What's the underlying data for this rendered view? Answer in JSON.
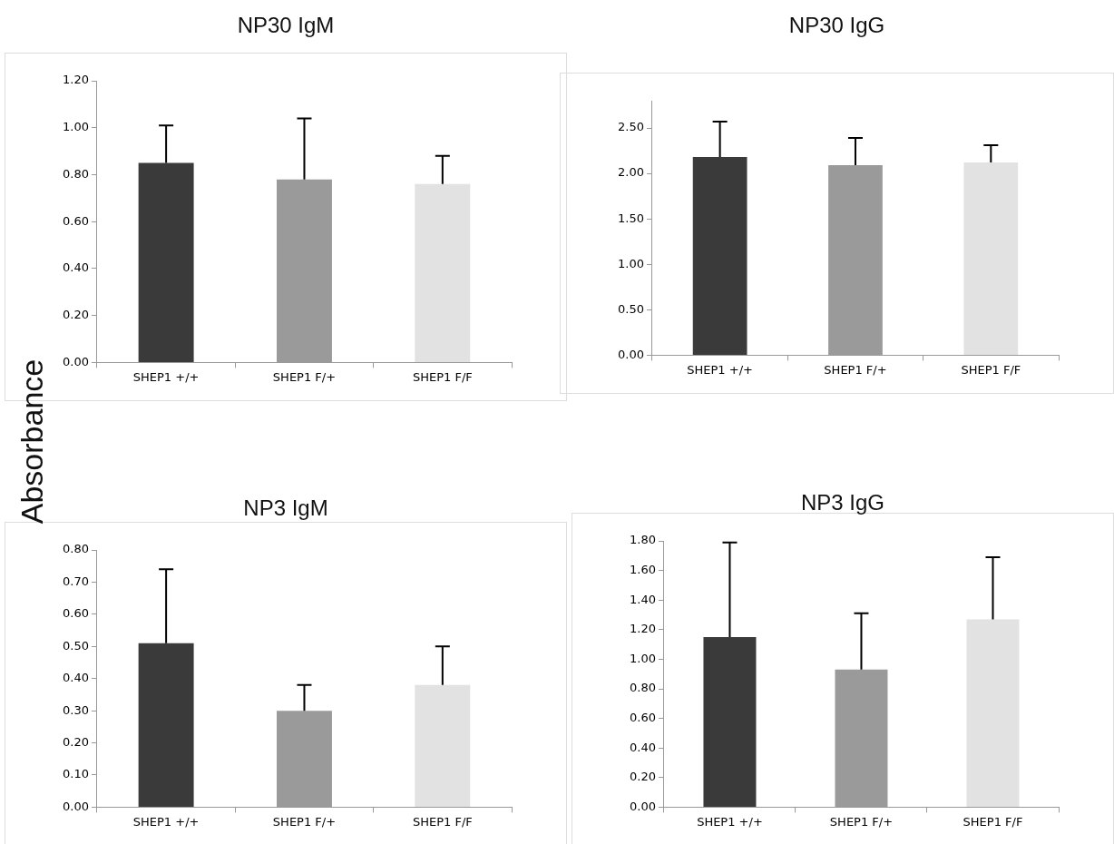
{
  "chart_data": [
    {
      "type": "bar",
      "title": "NP30 IgM",
      "ylabel": "Absorbance",
      "categories": [
        "SHEP1 +/+",
        "SHEP1 F/+",
        "SHEP1 F/F"
      ],
      "values": [
        0.85,
        0.78,
        0.76
      ],
      "errors": [
        [
          0.85,
          1.01
        ],
        [
          0.78,
          1.04
        ],
        [
          0.76,
          0.88
        ]
      ],
      "colors": [
        "#3a3a3a",
        "#9a9a9a",
        "#e2e2e2"
      ],
      "ylim": [
        0,
        1.2
      ],
      "yticks": [
        {
          "value": 0,
          "label": "0.00"
        },
        {
          "value": 0.2,
          "label": "0.20"
        },
        {
          "value": 0.4,
          "label": "0.40"
        },
        {
          "value": 0.6,
          "label": "0.60"
        },
        {
          "value": 0.8,
          "label": "0.80"
        },
        {
          "value": 1,
          "label": "1.00"
        },
        {
          "value": 1.2,
          "label": "1.20"
        }
      ],
      "grid": false,
      "legend": false
    },
    {
      "type": "bar",
      "title": "NP30 IgG",
      "categories": [
        "SHEP1 +/+",
        "SHEP1 F/+",
        "SHEP1 F/F"
      ],
      "values": [
        2.18,
        2.09,
        2.12
      ],
      "errors": [
        [
          2.18,
          2.57
        ],
        [
          2.09,
          2.39
        ],
        [
          2.12,
          2.31
        ]
      ],
      "colors": [
        "#3a3a3a",
        "#9a9a9a",
        "#e2e2e2"
      ],
      "ylim": [
        0,
        2.8
      ],
      "yticks": [
        {
          "value": 0,
          "label": "0.00"
        },
        {
          "value": 0.5,
          "label": "0.50"
        },
        {
          "value": 1,
          "label": "1.00"
        },
        {
          "value": 1.5,
          "label": "1.50"
        },
        {
          "value": 2,
          "label": "2.00"
        },
        {
          "value": 2.5,
          "label": "2.50"
        }
      ],
      "grid": false,
      "legend": false
    },
    {
      "type": "bar",
      "title": "NP3 IgM",
      "categories": [
        "SHEP1 +/+",
        "SHEP1 F/+",
        "SHEP1 F/F"
      ],
      "values": [
        0.51,
        0.3,
        0.38
      ],
      "errors": [
        [
          0.51,
          0.74
        ],
        [
          0.3,
          0.38
        ],
        [
          0.38,
          0.5
        ]
      ],
      "colors": [
        "#3a3a3a",
        "#9a9a9a",
        "#e2e2e2"
      ],
      "ylim": [
        0,
        0.8
      ],
      "yticks": [
        {
          "value": 0,
          "label": "0.00"
        },
        {
          "value": 0.1,
          "label": "0.10"
        },
        {
          "value": 0.2,
          "label": "0.20"
        },
        {
          "value": 0.3,
          "label": "0.30"
        },
        {
          "value": 0.4,
          "label": "0.40"
        },
        {
          "value": 0.5,
          "label": "0.50"
        },
        {
          "value": 0.6,
          "label": "0.60"
        },
        {
          "value": 0.7,
          "label": "0.70"
        },
        {
          "value": 0.8,
          "label": "0.80"
        }
      ],
      "grid": false,
      "legend": false
    },
    {
      "type": "bar",
      "title": "NP3 IgG",
      "categories": [
        "SHEP1 +/+",
        "SHEP1 F/+",
        "SHEP1 F/F"
      ],
      "values": [
        1.15,
        0.93,
        1.27
      ],
      "errors": [
        [
          1.15,
          1.79
        ],
        [
          0.93,
          1.31
        ],
        [
          1.27,
          1.69
        ]
      ],
      "colors": [
        "#3a3a3a",
        "#9a9a9a",
        "#e2e2e2"
      ],
      "ylim": [
        0,
        1.8
      ],
      "yticks": [
        {
          "value": 0,
          "label": "0.00"
        },
        {
          "value": 0.2,
          "label": "0.20"
        },
        {
          "value": 0.4,
          "label": "0.40"
        },
        {
          "value": 0.6,
          "label": "0.60"
        },
        {
          "value": 0.8,
          "label": "0.80"
        },
        {
          "value": 1,
          "label": "1.00"
        },
        {
          "value": 1.2,
          "label": "1.20"
        },
        {
          "value": 1.4,
          "label": "1.40"
        },
        {
          "value": 1.6,
          "label": "1.60"
        },
        {
          "value": 1.8,
          "label": "1.80"
        }
      ],
      "grid": false,
      "legend": false
    }
  ]
}
